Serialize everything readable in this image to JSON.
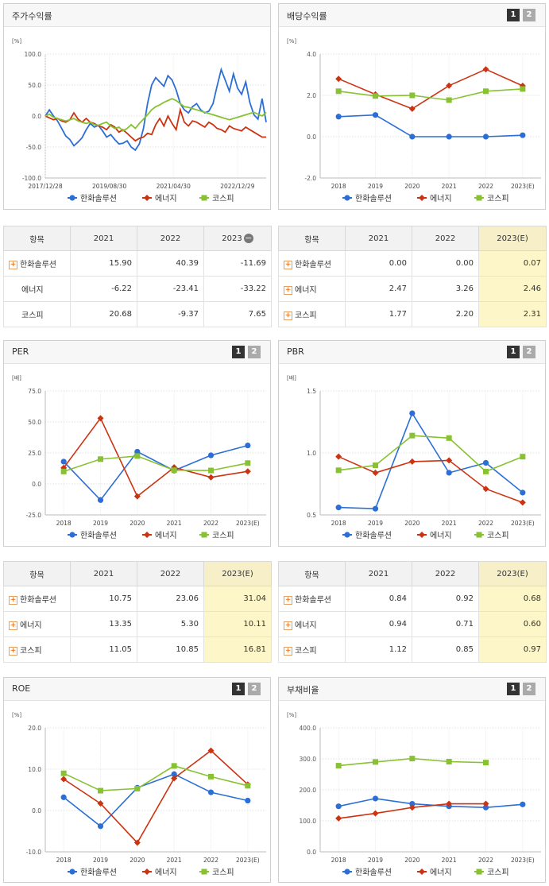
{
  "colors": {
    "hanwha": "#2b6fd6",
    "energy": "#cc3311",
    "kospi": "#88c232"
  },
  "legend": [
    "한화솔루션",
    "에너지",
    "코스피"
  ],
  "buttons": {
    "b1": "1",
    "b2": "2"
  },
  "price_panel": {
    "title": "주가수익률"
  },
  "dividend_panel": {
    "title": "배당수익률"
  },
  "per_panel": {
    "title": "PER"
  },
  "pbr_panel": {
    "title": "PBR"
  },
  "roe_panel": {
    "title": "ROE"
  },
  "debt_panel": {
    "title": "부채비율"
  },
  "chart_data": [
    {
      "id": "price",
      "type": "line",
      "title": "주가수익률",
      "ylabel": "[%]",
      "ylim": [
        -100,
        100
      ],
      "yticks": [
        "100.0",
        "50.0",
        "0.0",
        "-50.0",
        "-100.0"
      ],
      "xticks": [
        "2017/12/28",
        "2019/08/30",
        "2021/04/30",
        "2022/12/29"
      ],
      "series": [
        {
          "name": "한화솔루션",
          "values": [
            0,
            10,
            0,
            -8,
            -20,
            -32,
            -38,
            -48,
            -42,
            -35,
            -22,
            -12,
            -18,
            -15,
            -24,
            -34,
            -30,
            -38,
            -45,
            -44,
            -40,
            -50,
            -55,
            -45,
            -20,
            20,
            50,
            62,
            55,
            48,
            65,
            58,
            42,
            20,
            10,
            5,
            15,
            20,
            10,
            5,
            8,
            20,
            48,
            75,
            58,
            40,
            68,
            45,
            35,
            55,
            22,
            2,
            -5,
            28,
            -10
          ]
        },
        {
          "name": "에너지",
          "values": [
            0,
            -3,
            -6,
            -4,
            -8,
            -10,
            -6,
            5,
            -5,
            -10,
            -4,
            -10,
            -12,
            -16,
            -18,
            -22,
            -14,
            -18,
            -26,
            -22,
            -28,
            -34,
            -40,
            -36,
            -34,
            -28,
            -30,
            -14,
            -4,
            -16,
            0,
            -12,
            -22,
            10,
            -10,
            -16,
            -8,
            -10,
            -14,
            -18,
            -10,
            -14,
            -20,
            -22,
            -26,
            -16,
            -20,
            -22,
            -24,
            -18,
            -22,
            -26,
            -30,
            -34,
            -34
          ]
        },
        {
          "name": "코스피",
          "values": [
            0,
            3,
            -2,
            -4,
            -6,
            -8,
            -6,
            -4,
            -8,
            -10,
            -12,
            -10,
            -14,
            -15,
            -12,
            -10,
            -16,
            -20,
            -18,
            -24,
            -20,
            -14,
            -20,
            -12,
            -5,
            2,
            10,
            15,
            18,
            22,
            25,
            28,
            25,
            20,
            15,
            14,
            12,
            10,
            8,
            6,
            4,
            2,
            0,
            -2,
            -4,
            -6,
            -4,
            -2,
            0,
            2,
            4,
            6,
            3,
            0,
            6
          ]
        }
      ]
    },
    {
      "id": "dividend",
      "type": "line",
      "title": "배당수익률",
      "ylabel": "[%]",
      "ylim": [
        -2,
        4
      ],
      "yticks": [
        "4.0",
        "2.0",
        "0.0",
        "-2.0"
      ],
      "categories": [
        "2018",
        "2019",
        "2020",
        "2021",
        "2022",
        "2023(E)"
      ],
      "series": [
        {
          "name": "한화솔루션",
          "values": [
            0.97,
            1.05,
            0,
            0,
            0,
            0.07
          ]
        },
        {
          "name": "에너지",
          "values": [
            2.8,
            2.05,
            1.35,
            2.47,
            3.26,
            2.46
          ]
        },
        {
          "name": "코스피",
          "values": [
            2.2,
            1.97,
            2.0,
            1.77,
            2.2,
            2.31
          ]
        }
      ]
    },
    {
      "id": "per",
      "type": "line",
      "title": "PER",
      "ylabel": "[배]",
      "ylim": [
        -25,
        75
      ],
      "yticks": [
        "75.0",
        "50.0",
        "25.0",
        "0.0",
        "-25.0"
      ],
      "categories": [
        "2018",
        "2019",
        "2020",
        "2021",
        "2022",
        "2023(E)"
      ],
      "series": [
        {
          "name": "한화솔루션",
          "values": [
            18,
            -13,
            26,
            10.75,
            23.06,
            31.04
          ]
        },
        {
          "name": "에너지",
          "values": [
            13,
            53,
            -10,
            13.35,
            5.3,
            10.11
          ]
        },
        {
          "name": "코스피",
          "values": [
            10,
            20,
            22.5,
            11.05,
            10.85,
            16.81
          ]
        }
      ]
    },
    {
      "id": "pbr",
      "type": "line",
      "title": "PBR",
      "ylabel": "[배]",
      "ylim": [
        0.5,
        1.5
      ],
      "yticks": [
        "1.5",
        "1.0",
        "0.5"
      ],
      "categories": [
        "2018",
        "2019",
        "2020",
        "2021",
        "2022",
        "2023(E)"
      ],
      "series": [
        {
          "name": "한화솔루션",
          "values": [
            0.56,
            0.55,
            1.32,
            0.84,
            0.92,
            0.68
          ]
        },
        {
          "name": "에너지",
          "values": [
            0.97,
            0.84,
            0.93,
            0.94,
            0.71,
            0.6
          ]
        },
        {
          "name": "코스피",
          "values": [
            0.86,
            0.9,
            1.14,
            1.12,
            0.85,
            0.97
          ]
        }
      ]
    },
    {
      "id": "roe",
      "type": "line",
      "title": "ROE",
      "ylabel": "[%]",
      "ylim": [
        -10,
        20
      ],
      "yticks": [
        "20.0",
        "10.0",
        "0.0",
        "-10.0"
      ],
      "categories": [
        "2018",
        "2019",
        "2020",
        "2021",
        "2022",
        "2023(E)"
      ],
      "series": [
        {
          "name": "한화솔루션",
          "values": [
            3.2,
            -3.8,
            5.5,
            8.8,
            4.4,
            2.4
          ]
        },
        {
          "name": "에너지",
          "values": [
            7.6,
            1.7,
            -7.8,
            7.8,
            14.5,
            6.3
          ]
        },
        {
          "name": "코스피",
          "values": [
            9.0,
            4.8,
            5.3,
            10.8,
            8.2,
            6.0
          ]
        }
      ]
    },
    {
      "id": "debt",
      "type": "line",
      "title": "부채비율",
      "ylabel": "[%]",
      "ylim": [
        0,
        400
      ],
      "yticks": [
        "400.0",
        "300.0",
        "200.0",
        "100.0",
        "0.0"
      ],
      "categories": [
        "2018",
        "2019",
        "2020",
        "2021",
        "2022",
        "2023(E)"
      ],
      "series": [
        {
          "name": "한화솔루션",
          "values": [
            147,
            172,
            155,
            147,
            143,
            153
          ]
        },
        {
          "name": "에너지",
          "values": [
            108,
            124,
            143,
            155,
            155,
            null
          ]
        },
        {
          "name": "코스피",
          "values": [
            278,
            290,
            301,
            291,
            288,
            null
          ]
        }
      ]
    }
  ],
  "tables": {
    "price": {
      "header": [
        "항목",
        "2021",
        "2022",
        "2023"
      ],
      "minus": "−",
      "rows": [
        {
          "name": "한화솔루션",
          "plus": true,
          "values": [
            "15.90",
            "40.39",
            "-11.69"
          ]
        },
        {
          "name": "에너지",
          "plus": false,
          "values": [
            "-6.22",
            "-23.41",
            "-33.22"
          ]
        },
        {
          "name": "코스피",
          "plus": false,
          "values": [
            "20.68",
            "-9.37",
            "7.65"
          ]
        }
      ]
    },
    "dividend": {
      "header": [
        "항목",
        "2021",
        "2022",
        "2023(E)"
      ],
      "rows": [
        {
          "name": "한화솔루션",
          "plus": true,
          "values": [
            "0.00",
            "0.00",
            "0.07"
          ]
        },
        {
          "name": "에너지",
          "plus": true,
          "values": [
            "2.47",
            "3.26",
            "2.46"
          ]
        },
        {
          "name": "코스피",
          "plus": true,
          "values": [
            "1.77",
            "2.20",
            "2.31"
          ]
        }
      ]
    },
    "per": {
      "header": [
        "항목",
        "2021",
        "2022",
        "2023(E)"
      ],
      "rows": [
        {
          "name": "한화솔루션",
          "plus": true,
          "values": [
            "10.75",
            "23.06",
            "31.04"
          ]
        },
        {
          "name": "에너지",
          "plus": true,
          "values": [
            "13.35",
            "5.30",
            "10.11"
          ]
        },
        {
          "name": "코스피",
          "plus": true,
          "values": [
            "11.05",
            "10.85",
            "16.81"
          ]
        }
      ]
    },
    "pbr": {
      "header": [
        "항목",
        "2021",
        "2022",
        "2023(E)"
      ],
      "rows": [
        {
          "name": "한화솔루션",
          "plus": true,
          "values": [
            "0.84",
            "0.92",
            "0.68"
          ]
        },
        {
          "name": "에너지",
          "plus": true,
          "values": [
            "0.94",
            "0.71",
            "0.60"
          ]
        },
        {
          "name": "코스피",
          "plus": true,
          "values": [
            "1.12",
            "0.85",
            "0.97"
          ]
        }
      ]
    }
  }
}
